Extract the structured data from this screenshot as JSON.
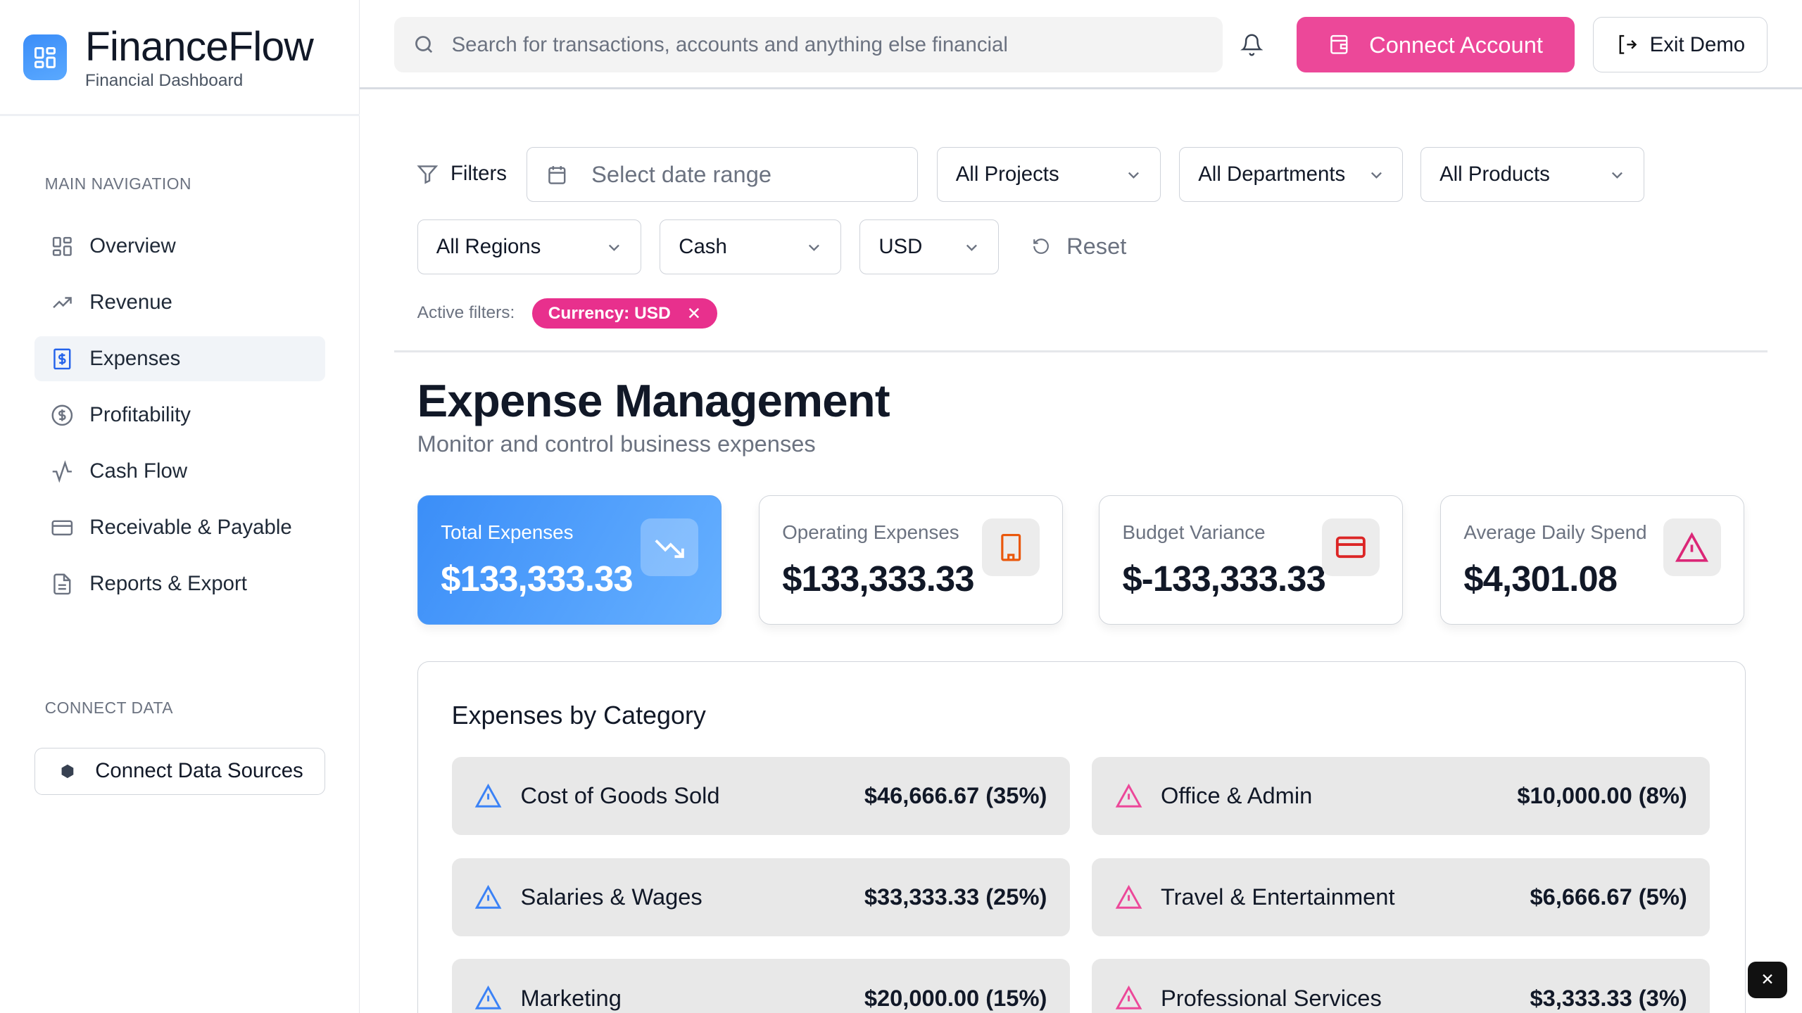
{
  "brand": {
    "title": "FinanceFlow",
    "subtitle": "Financial Dashboard"
  },
  "sidebar": {
    "main_heading": "MAIN NAVIGATION",
    "items": [
      {
        "label": "Overview",
        "icon": "grid-icon"
      },
      {
        "label": "Revenue",
        "icon": "trending-up-icon"
      },
      {
        "label": "Expenses",
        "icon": "receipt-dollar-icon",
        "active": true
      },
      {
        "label": "Profitability",
        "icon": "dollar-circle-icon"
      },
      {
        "label": "Cash Flow",
        "icon": "activity-icon"
      },
      {
        "label": "Receivable & Payable",
        "icon": "credit-card-icon"
      },
      {
        "label": "Reports & Export",
        "icon": "file-icon"
      }
    ],
    "connect_heading": "CONNECT DATA",
    "connect_button": "Connect Data Sources"
  },
  "header": {
    "search_placeholder": "Search for transactions, accounts and anything else financial",
    "connect_account": "Connect Account",
    "exit_demo": "Exit Demo"
  },
  "filters": {
    "label": "Filters",
    "date_placeholder": "Select date range",
    "projects": "All Projects",
    "departments": "All Departments",
    "products": "All Products",
    "regions": "All Regions",
    "basis": "Cash",
    "currency": "USD",
    "reset": "Reset",
    "active_label": "Active filters:",
    "active_chip": "Currency: USD"
  },
  "page": {
    "title": "Expense Management",
    "subtitle": "Monitor and control business expenses"
  },
  "cards": [
    {
      "label": "Total Expenses",
      "value": "$133,333.33",
      "icon": "trending-down-icon"
    },
    {
      "label": "Operating Expenses",
      "value": "$133,333.33",
      "icon": "building-icon",
      "color": "#ea580c"
    },
    {
      "label": "Budget Variance",
      "value": "$-133,333.33",
      "icon": "credit-card-icon",
      "color": "#dc2626"
    },
    {
      "label": "Average Daily Spend",
      "value": "$4,301.08",
      "icon": "alert-triangle-icon",
      "color": "#db2777"
    }
  ],
  "categories": {
    "title": "Expenses by Category",
    "items": [
      {
        "name": "Cost of Goods Sold",
        "amount": "$46,666.67 (35%)",
        "color": "#3b82f6"
      },
      {
        "name": "Office & Admin",
        "amount": "$10,000.00 (8%)",
        "color": "#ec4899"
      },
      {
        "name": "Salaries & Wages",
        "amount": "$33,333.33 (25%)",
        "color": "#3b82f6"
      },
      {
        "name": "Travel & Entertainment",
        "amount": "$6,666.67 (5%)",
        "color": "#ec4899"
      },
      {
        "name": "Marketing",
        "amount": "$20,000.00 (15%)",
        "color": "#3b82f6"
      },
      {
        "name": "Professional Services",
        "amount": "$3,333.33 (3%)",
        "color": "#ec4899"
      }
    ]
  },
  "colors": {
    "accent": "#ec4899",
    "primary": "#3b8ef8"
  }
}
